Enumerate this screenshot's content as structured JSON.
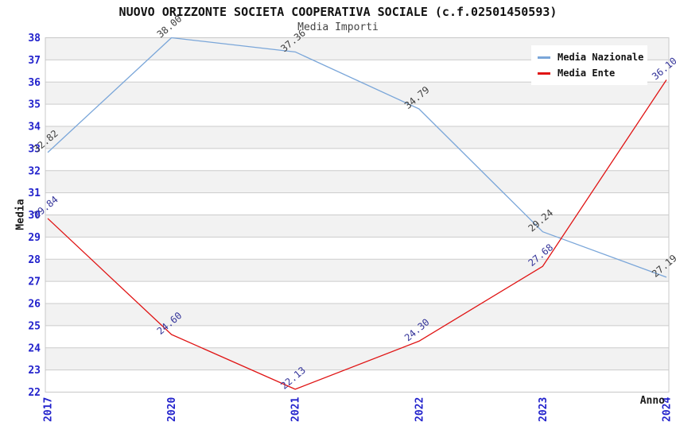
{
  "chart_data": {
    "type": "line",
    "title": "NUOVO ORIZZONTE SOCIETA COOPERATIVA SOCIALE (c.f.02501450593)",
    "subtitle": "Media Importi",
    "xlabel": "Anno",
    "ylabel": "Media",
    "categories": [
      "2017",
      "2020",
      "2021",
      "2022",
      "2023",
      "2024"
    ],
    "series": [
      {
        "name": "Media Nazionale",
        "color": "#7aa6d9",
        "label_color": "#3d3d3d",
        "values": [
          32.82,
          38.0,
          37.36,
          34.79,
          29.24,
          27.19
        ]
      },
      {
        "name": "Media Ente",
        "color": "#e01414",
        "label_color": "#333399",
        "values": [
          29.84,
          24.6,
          22.13,
          24.3,
          27.68,
          36.1
        ]
      }
    ],
    "ylim": [
      22,
      38
    ],
    "yticks": [
      22,
      23,
      24,
      25,
      26,
      27,
      28,
      29,
      30,
      31,
      32,
      33,
      34,
      35,
      36,
      37,
      38
    ],
    "grid": "horizontal-bands",
    "legend_position": "top-right",
    "colors": {
      "tick_label": "#2222cc",
      "gridline": "#cccccc",
      "band_gray": "#f2f2f2",
      "band_white": "#ffffff",
      "plot_border": "#c8c8c8",
      "axis_title": "#1a1a1a"
    }
  }
}
